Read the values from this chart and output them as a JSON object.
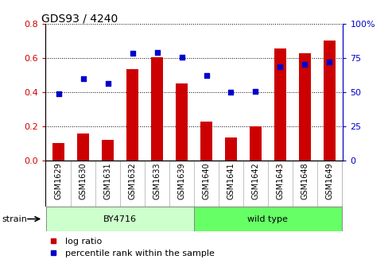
{
  "title": "GDS93 / 4240",
  "categories": [
    "GSM1629",
    "GSM1630",
    "GSM1631",
    "GSM1632",
    "GSM1633",
    "GSM1639",
    "GSM1640",
    "GSM1641",
    "GSM1642",
    "GSM1643",
    "GSM1648",
    "GSM1649"
  ],
  "log_ratio": [
    0.1,
    0.155,
    0.12,
    0.535,
    0.605,
    0.45,
    0.225,
    0.135,
    0.2,
    0.655,
    0.63,
    0.705
  ],
  "percentile_rank": [
    49,
    60,
    56.5,
    78.5,
    79,
    75.5,
    62.5,
    50,
    50.5,
    68.5,
    70.5,
    72
  ],
  "bar_color": "#cc0000",
  "dot_color": "#0000cc",
  "ylim_left": [
    0,
    0.8
  ],
  "ylim_right": [
    0,
    100
  ],
  "yticks_left": [
    0,
    0.2,
    0.4,
    0.6,
    0.8
  ],
  "yticks_right": [
    0,
    25,
    50,
    75,
    100
  ],
  "ytick_labels_right": [
    "0",
    "25",
    "50",
    "75",
    "100%"
  ],
  "left_tick_color": "#cc0000",
  "right_tick_color": "#0000cc",
  "strain_groups": [
    {
      "label": "BY4716",
      "start": 0,
      "end": 5,
      "color": "#ccffcc"
    },
    {
      "label": "wild type",
      "start": 6,
      "end": 11,
      "color": "#66ff66"
    }
  ],
  "strain_label": "strain",
  "legend_bar_label": "log ratio",
  "legend_dot_label": "percentile rank within the sample",
  "tick_area_color": "#cccccc",
  "title_fontsize": 10,
  "axis_fontsize": 8,
  "label_fontsize": 7,
  "strain_fontsize": 8,
  "legend_fontsize": 8
}
